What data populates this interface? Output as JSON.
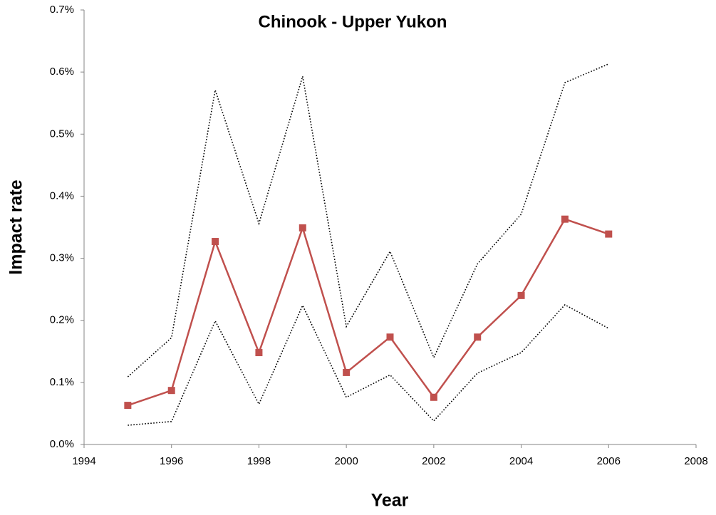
{
  "chart_data": {
    "type": "line",
    "title": "Chinook - Upper Yukon",
    "x_label": "Year",
    "y_label": "Impact rate",
    "x": [
      1995,
      1996,
      1997,
      1998,
      1999,
      2000,
      2001,
      2002,
      2003,
      2004,
      2005,
      2006
    ],
    "series": [
      {
        "color": "#000000",
        "line_style": "dotted",
        "marker": "none",
        "values": [
          0.109,
          0.172,
          0.571,
          0.356,
          0.593,
          0.19,
          0.311,
          0.14,
          0.291,
          0.371,
          0.583,
          0.613
        ]
      },
      {
        "color": "#000000",
        "line_style": "dotted",
        "marker": "none",
        "values": [
          0.031,
          0.037,
          0.199,
          0.065,
          0.224,
          0.076,
          0.112,
          0.038,
          0.115,
          0.148,
          0.225,
          0.187
        ]
      },
      {
        "color": "#c0504d",
        "line_style": "solid",
        "marker": "square",
        "values": [
          0.063,
          0.087,
          0.327,
          0.148,
          0.349,
          0.116,
          0.173,
          0.076,
          0.173,
          0.24,
          0.363,
          0.339
        ]
      }
    ],
    "xlim": [
      1994,
      2008
    ],
    "xticks": [
      1994,
      1996,
      1998,
      2000,
      2002,
      2004,
      2006,
      2008
    ],
    "ylim": [
      0,
      0.7
    ],
    "yticks": [
      {
        "value": 0,
        "label": "0.0%"
      },
      {
        "value": 0.1,
        "label": "0.1%"
      },
      {
        "value": 0.2,
        "label": "0.2%"
      },
      {
        "value": 0.3,
        "label": "0.3%"
      },
      {
        "value": 0.4,
        "label": "0.4%"
      },
      {
        "value": 0.5,
        "label": "0.5%"
      },
      {
        "value": 0.6,
        "label": "0.6%"
      },
      {
        "value": 0.7,
        "label": "0.7%"
      }
    ],
    "grid": false
  }
}
